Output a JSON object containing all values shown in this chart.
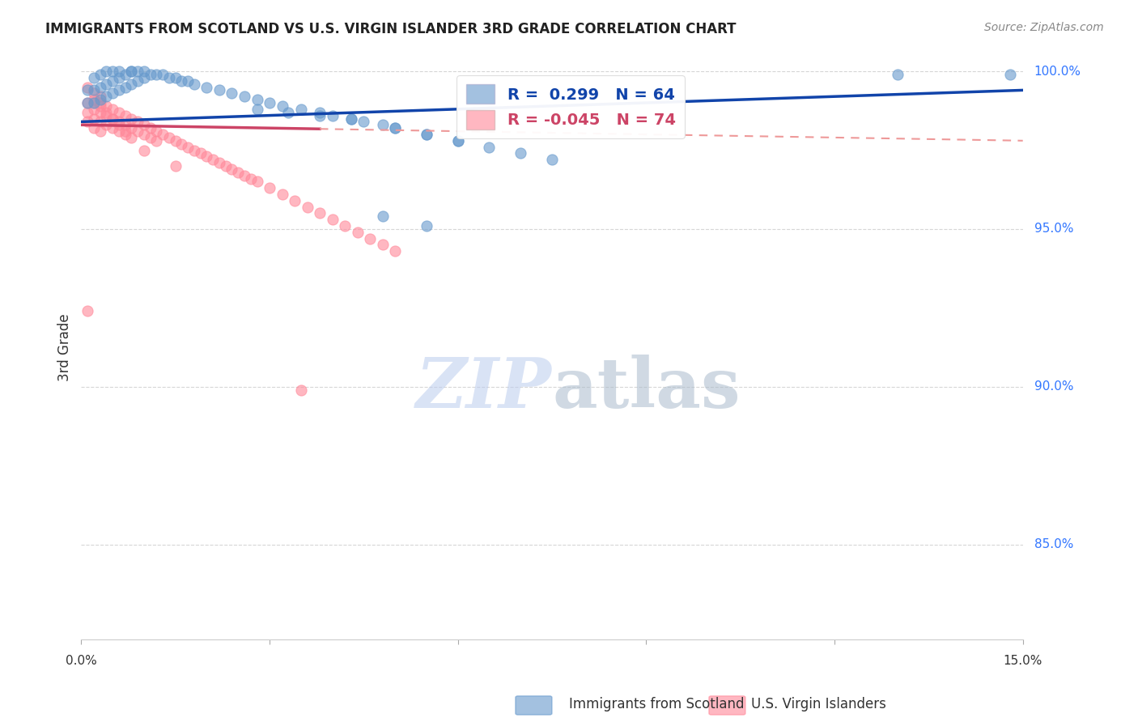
{
  "title": "IMMIGRANTS FROM SCOTLAND VS U.S. VIRGIN ISLANDER 3RD GRADE CORRELATION CHART",
  "source": "Source: ZipAtlas.com",
  "ylabel": "3rd Grade",
  "xmin": 0.0,
  "xmax": 0.15,
  "ymin": 0.82,
  "ymax": 1.005,
  "legend_blue_label": "Immigrants from Scotland",
  "legend_pink_label": "U.S. Virgin Islanders",
  "R_blue": 0.299,
  "N_blue": 64,
  "R_pink": -0.045,
  "N_pink": 74,
  "blue_color": "#6699CC",
  "pink_color": "#FF8899",
  "trendline_blue_color": "#1144AA",
  "trendline_pink_solid_color": "#CC4466",
  "trendline_pink_dashed_color": "#EE9999",
  "grid_color": "#CCCCCC",
  "title_color": "#222222",
  "axis_label_color": "#333333",
  "right_axis_color": "#3377FF",
  "watermark_color": "#BBCCEE",
  "blue_x": [
    0.001,
    0.001,
    0.002,
    0.002,
    0.002,
    0.003,
    0.003,
    0.003,
    0.004,
    0.004,
    0.004,
    0.005,
    0.005,
    0.005,
    0.006,
    0.006,
    0.006,
    0.007,
    0.007,
    0.008,
    0.008,
    0.008,
    0.009,
    0.009,
    0.01,
    0.01,
    0.011,
    0.012,
    0.013,
    0.014,
    0.015,
    0.016,
    0.017,
    0.018,
    0.02,
    0.022,
    0.024,
    0.026,
    0.028,
    0.03,
    0.032,
    0.035,
    0.038,
    0.04,
    0.043,
    0.045,
    0.048,
    0.05,
    0.055,
    0.06,
    0.065,
    0.07,
    0.075,
    0.028,
    0.033,
    0.038,
    0.043,
    0.05,
    0.055,
    0.06,
    0.048,
    0.055,
    0.13,
    0.148
  ],
  "blue_y": [
    0.99,
    0.994,
    0.99,
    0.994,
    0.998,
    0.991,
    0.995,
    0.999,
    0.992,
    0.996,
    1.0,
    0.993,
    0.997,
    1.0,
    0.994,
    0.998,
    1.0,
    0.995,
    0.999,
    0.996,
    1.0,
    1.0,
    0.997,
    1.0,
    0.998,
    1.0,
    0.999,
    0.999,
    0.999,
    0.998,
    0.998,
    0.997,
    0.997,
    0.996,
    0.995,
    0.994,
    0.993,
    0.992,
    0.991,
    0.99,
    0.989,
    0.988,
    0.987,
    0.986,
    0.985,
    0.984,
    0.983,
    0.982,
    0.98,
    0.978,
    0.976,
    0.974,
    0.972,
    0.988,
    0.987,
    0.986,
    0.985,
    0.982,
    0.98,
    0.978,
    0.954,
    0.951,
    0.999,
    0.999
  ],
  "pink_x": [
    0.001,
    0.001,
    0.001,
    0.002,
    0.002,
    0.002,
    0.002,
    0.003,
    0.003,
    0.003,
    0.003,
    0.004,
    0.004,
    0.004,
    0.005,
    0.005,
    0.005,
    0.006,
    0.006,
    0.006,
    0.007,
    0.007,
    0.007,
    0.008,
    0.008,
    0.009,
    0.009,
    0.01,
    0.01,
    0.011,
    0.011,
    0.012,
    0.012,
    0.013,
    0.014,
    0.015,
    0.016,
    0.017,
    0.018,
    0.019,
    0.02,
    0.021,
    0.022,
    0.023,
    0.024,
    0.025,
    0.026,
    0.027,
    0.028,
    0.03,
    0.032,
    0.034,
    0.036,
    0.038,
    0.04,
    0.042,
    0.044,
    0.046,
    0.048,
    0.05,
    0.001,
    0.002,
    0.002,
    0.003,
    0.003,
    0.004,
    0.005,
    0.006,
    0.007,
    0.008,
    0.001,
    0.035,
    0.01,
    0.015
  ],
  "pink_y": [
    0.99,
    0.987,
    0.984,
    0.991,
    0.988,
    0.985,
    0.982,
    0.99,
    0.987,
    0.984,
    0.981,
    0.989,
    0.986,
    0.983,
    0.988,
    0.985,
    0.982,
    0.987,
    0.984,
    0.981,
    0.986,
    0.983,
    0.98,
    0.985,
    0.982,
    0.984,
    0.981,
    0.983,
    0.98,
    0.982,
    0.979,
    0.981,
    0.978,
    0.98,
    0.979,
    0.978,
    0.977,
    0.976,
    0.975,
    0.974,
    0.973,
    0.972,
    0.971,
    0.97,
    0.969,
    0.968,
    0.967,
    0.966,
    0.965,
    0.963,
    0.961,
    0.959,
    0.957,
    0.955,
    0.953,
    0.951,
    0.949,
    0.947,
    0.945,
    0.943,
    0.995,
    0.993,
    0.99,
    0.992,
    0.989,
    0.987,
    0.985,
    0.983,
    0.981,
    0.979,
    0.924,
    0.899,
    0.975,
    0.97
  ]
}
